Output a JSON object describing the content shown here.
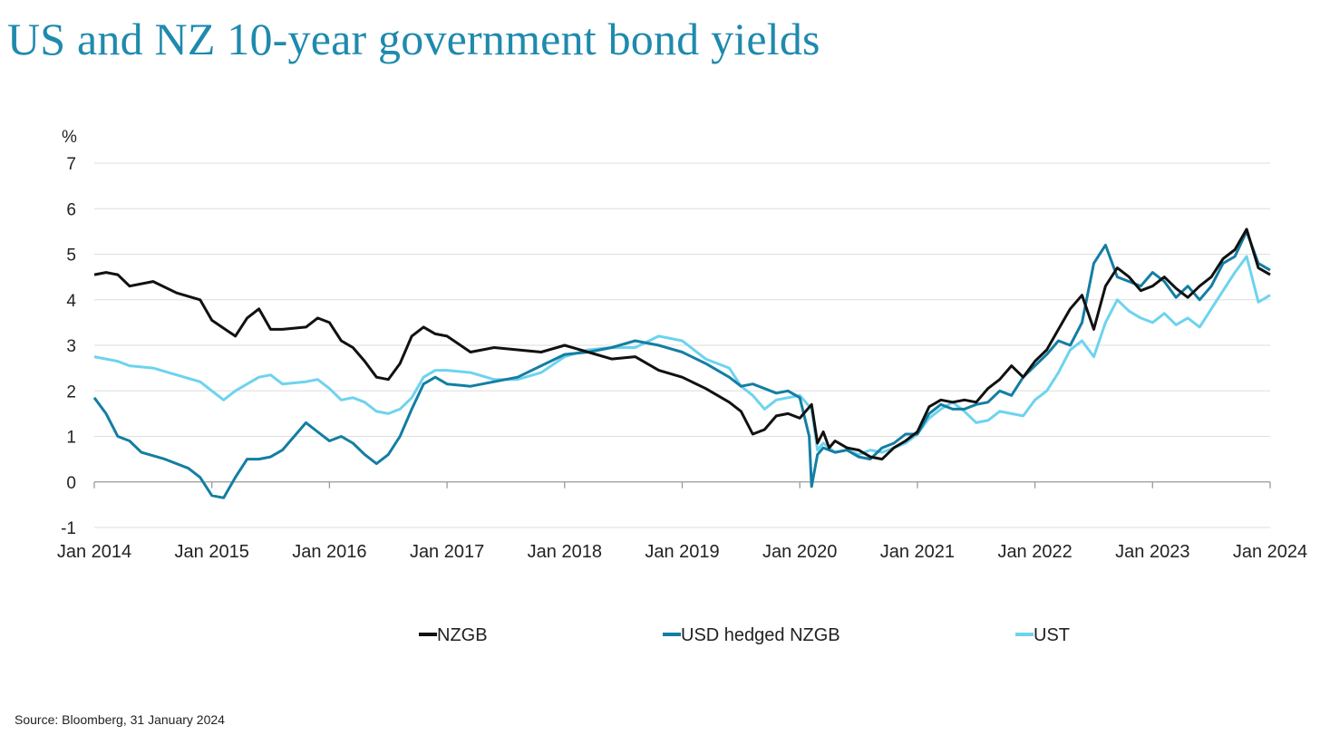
{
  "title": "US and NZ 10-year government bond yields",
  "source": "Source: Bloomberg, 31 January 2024",
  "chart_data": {
    "type": "line",
    "title": "US and NZ 10-year government bond yields",
    "ylabel": "%",
    "xlabel": "",
    "ylim": [
      -1,
      7
    ],
    "xlim": [
      2014.0,
      2024.0
    ],
    "y_ticks": [
      -1,
      0,
      1,
      2,
      3,
      4,
      5,
      6,
      7
    ],
    "y_tick_labels": [
      "-1",
      "0",
      "1",
      "2",
      "3",
      "4",
      "5",
      "6",
      "7"
    ],
    "x_ticks": [
      2014,
      2015,
      2016,
      2017,
      2018,
      2019,
      2020,
      2021,
      2022,
      2023,
      2024
    ],
    "x_tick_labels": [
      "Jan 2014",
      "Jan 2015",
      "Jan 2016",
      "Jan 2017",
      "Jan 2018",
      "Jan 2019",
      "Jan 2020",
      "Jan 2021",
      "Jan 2022",
      "Jan 2023",
      "Jan 2024"
    ],
    "grid": true,
    "legend_position": "bottom",
    "series": [
      {
        "name": "NZGB",
        "color": "#111111",
        "x": [
          2014.0,
          2014.1,
          2014.2,
          2014.3,
          2014.5,
          2014.7,
          2014.9,
          2015.0,
          2015.2,
          2015.3,
          2015.4,
          2015.5,
          2015.6,
          2015.8,
          2015.9,
          2016.0,
          2016.1,
          2016.2,
          2016.3,
          2016.4,
          2016.5,
          2016.6,
          2016.7,
          2016.8,
          2016.9,
          2017.0,
          2017.2,
          2017.4,
          2017.6,
          2017.8,
          2018.0,
          2018.2,
          2018.4,
          2018.6,
          2018.8,
          2019.0,
          2019.2,
          2019.4,
          2019.5,
          2019.6,
          2019.7,
          2019.8,
          2019.9,
          2020.0,
          2020.1,
          2020.15,
          2020.2,
          2020.25,
          2020.3,
          2020.4,
          2020.5,
          2020.6,
          2020.7,
          2020.8,
          2020.9,
          2021.0,
          2021.1,
          2021.2,
          2021.3,
          2021.4,
          2021.5,
          2021.6,
          2021.7,
          2021.8,
          2021.9,
          2022.0,
          2022.1,
          2022.2,
          2022.3,
          2022.4,
          2022.5,
          2022.6,
          2022.7,
          2022.8,
          2022.9,
          2023.0,
          2023.1,
          2023.2,
          2023.3,
          2023.4,
          2023.5,
          2023.6,
          2023.7,
          2023.8,
          2023.9,
          2024.0
        ],
        "values": [
          4.55,
          4.6,
          4.55,
          4.3,
          4.4,
          4.15,
          4.0,
          3.55,
          3.2,
          3.6,
          3.8,
          3.35,
          3.35,
          3.4,
          3.6,
          3.5,
          3.1,
          2.95,
          2.65,
          2.3,
          2.25,
          2.6,
          3.2,
          3.4,
          3.25,
          3.2,
          2.85,
          2.95,
          2.9,
          2.85,
          3.0,
          2.85,
          2.7,
          2.75,
          2.45,
          2.3,
          2.05,
          1.75,
          1.55,
          1.05,
          1.15,
          1.45,
          1.5,
          1.4,
          1.7,
          0.85,
          1.1,
          0.75,
          0.9,
          0.75,
          0.7,
          0.55,
          0.5,
          0.75,
          0.9,
          1.1,
          1.65,
          1.8,
          1.75,
          1.8,
          1.75,
          2.05,
          2.25,
          2.55,
          2.3,
          2.65,
          2.9,
          3.35,
          3.8,
          4.1,
          3.35,
          4.3,
          4.7,
          4.5,
          4.2,
          4.3,
          4.5,
          4.25,
          4.05,
          4.3,
          4.5,
          4.9,
          5.1,
          5.55,
          4.7,
          4.55
        ]
      },
      {
        "name": "USD hedged NZGB",
        "color": "#137ea3",
        "x": [
          2014.0,
          2014.1,
          2014.2,
          2014.3,
          2014.4,
          2014.6,
          2014.8,
          2014.9,
          2015.0,
          2015.1,
          2015.2,
          2015.3,
          2015.4,
          2015.5,
          2015.6,
          2015.8,
          2015.9,
          2016.0,
          2016.1,
          2016.2,
          2016.3,
          2016.4,
          2016.5,
          2016.6,
          2016.7,
          2016.8,
          2016.9,
          2017.0,
          2017.2,
          2017.4,
          2017.6,
          2017.8,
          2018.0,
          2018.2,
          2018.4,
          2018.6,
          2018.8,
          2019.0,
          2019.2,
          2019.4,
          2019.5,
          2019.6,
          2019.7,
          2019.8,
          2019.9,
          2020.0,
          2020.08,
          2020.1,
          2020.15,
          2020.2,
          2020.3,
          2020.4,
          2020.5,
          2020.6,
          2020.7,
          2020.8,
          2020.9,
          2021.0,
          2021.1,
          2021.2,
          2021.3,
          2021.4,
          2021.5,
          2021.6,
          2021.7,
          2021.8,
          2021.9,
          2022.0,
          2022.1,
          2022.2,
          2022.3,
          2022.4,
          2022.5,
          2022.6,
          2022.7,
          2022.8,
          2022.9,
          2023.0,
          2023.1,
          2023.2,
          2023.3,
          2023.4,
          2023.5,
          2023.6,
          2023.7,
          2023.8,
          2023.9,
          2024.0
        ],
        "values": [
          1.85,
          1.5,
          1.0,
          0.9,
          0.65,
          0.5,
          0.3,
          0.1,
          -0.3,
          -0.35,
          0.1,
          0.5,
          0.5,
          0.55,
          0.7,
          1.3,
          1.1,
          0.9,
          1.0,
          0.85,
          0.6,
          0.4,
          0.6,
          1.0,
          1.6,
          2.15,
          2.3,
          2.15,
          2.1,
          2.2,
          2.3,
          2.55,
          2.8,
          2.85,
          2.95,
          3.1,
          3.0,
          2.85,
          2.6,
          2.3,
          2.1,
          2.15,
          2.05,
          1.95,
          2.0,
          1.85,
          1.0,
          -0.1,
          0.6,
          0.75,
          0.65,
          0.7,
          0.55,
          0.5,
          0.75,
          0.85,
          1.05,
          1.05,
          1.5,
          1.7,
          1.6,
          1.6,
          1.7,
          1.75,
          2.0,
          1.9,
          2.3,
          2.55,
          2.8,
          3.1,
          3.0,
          3.5,
          4.8,
          5.2,
          4.5,
          4.4,
          4.3,
          4.6,
          4.4,
          4.05,
          4.3,
          4.0,
          4.3,
          4.8,
          4.95,
          5.5,
          4.8,
          4.65
        ]
      },
      {
        "name": "UST",
        "color": "#6dd3ef",
        "x": [
          2014.0,
          2014.1,
          2014.2,
          2014.3,
          2014.5,
          2014.7,
          2014.9,
          2015.0,
          2015.1,
          2015.2,
          2015.3,
          2015.4,
          2015.5,
          2015.6,
          2015.8,
          2015.9,
          2016.0,
          2016.1,
          2016.2,
          2016.3,
          2016.4,
          2016.5,
          2016.6,
          2016.7,
          2016.8,
          2016.9,
          2017.0,
          2017.2,
          2017.4,
          2017.6,
          2017.8,
          2018.0,
          2018.2,
          2018.4,
          2018.6,
          2018.8,
          2019.0,
          2019.2,
          2019.4,
          2019.5,
          2019.6,
          2019.7,
          2019.8,
          2019.9,
          2020.0,
          2020.1,
          2020.15,
          2020.2,
          2020.3,
          2020.4,
          2020.5,
          2020.6,
          2020.7,
          2020.8,
          2020.9,
          2021.0,
          2021.1,
          2021.2,
          2021.3,
          2021.4,
          2021.5,
          2021.6,
          2021.7,
          2021.8,
          2021.9,
          2022.0,
          2022.1,
          2022.2,
          2022.3,
          2022.4,
          2022.5,
          2022.6,
          2022.7,
          2022.8,
          2022.9,
          2023.0,
          2023.1,
          2023.2,
          2023.3,
          2023.4,
          2023.5,
          2023.6,
          2023.7,
          2023.8,
          2023.9,
          2024.0
        ],
        "values": [
          2.75,
          2.7,
          2.65,
          2.55,
          2.5,
          2.35,
          2.2,
          2.0,
          1.8,
          2.0,
          2.15,
          2.3,
          2.35,
          2.15,
          2.2,
          2.25,
          2.05,
          1.8,
          1.85,
          1.75,
          1.55,
          1.5,
          1.6,
          1.85,
          2.3,
          2.45,
          2.45,
          2.4,
          2.25,
          2.25,
          2.4,
          2.75,
          2.9,
          2.95,
          2.95,
          3.2,
          3.1,
          2.7,
          2.5,
          2.1,
          1.9,
          1.6,
          1.8,
          1.85,
          1.9,
          1.6,
          0.7,
          0.85,
          0.65,
          0.7,
          0.6,
          0.7,
          0.65,
          0.75,
          0.85,
          1.05,
          1.4,
          1.6,
          1.75,
          1.55,
          1.3,
          1.35,
          1.55,
          1.5,
          1.45,
          1.8,
          2.0,
          2.4,
          2.9,
          3.1,
          2.75,
          3.5,
          4.0,
          3.75,
          3.6,
          3.5,
          3.7,
          3.45,
          3.6,
          3.4,
          3.8,
          4.2,
          4.6,
          4.95,
          3.95,
          4.1
        ]
      }
    ]
  }
}
